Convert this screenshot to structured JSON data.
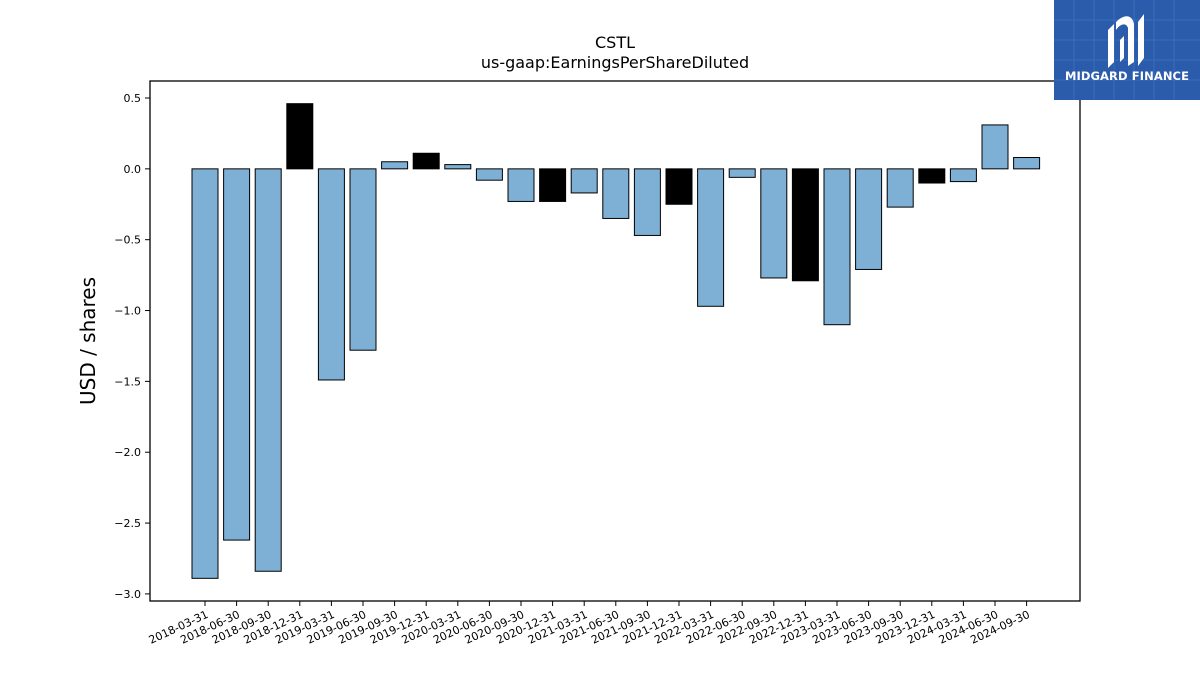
{
  "chart_data": {
    "type": "bar",
    "title": "CSTL",
    "subtitle": "us-gaap:EarningsPerShareDiluted",
    "xlabel": "",
    "ylabel": "USD / shares",
    "ylim": [
      -3.05,
      0.62
    ],
    "yticks": [
      0.5,
      0.0,
      -0.5,
      -1.0,
      -1.5,
      -2.0,
      -2.5,
      -3.0
    ],
    "ytick_labels": [
      "0.5",
      "0.0",
      "−0.5",
      "−1.0",
      "−1.5",
      "−2.0",
      "−2.5",
      "−3.0"
    ],
    "grid": false,
    "categories": [
      "2018-03-31",
      "2018-06-30",
      "2018-09-30",
      "2018-12-31",
      "2019-03-31",
      "2019-06-30",
      "2019-09-30",
      "2019-12-31",
      "2020-03-31",
      "2020-06-30",
      "2020-09-30",
      "2020-12-31",
      "2021-03-31",
      "2021-06-30",
      "2021-09-30",
      "2021-12-31",
      "2022-03-31",
      "2022-06-30",
      "2022-09-30",
      "2022-12-31",
      "2023-03-31",
      "2023-06-30",
      "2023-09-30",
      "2023-12-31",
      "2024-03-31",
      "2024-06-30",
      "2024-09-30"
    ],
    "values": [
      -2.89,
      -2.62,
      -2.84,
      0.46,
      -1.49,
      -1.28,
      0.05,
      0.11,
      0.03,
      -0.08,
      -0.23,
      -0.23,
      -0.17,
      -0.35,
      -0.47,
      -0.25,
      -0.97,
      -0.06,
      -0.77,
      -0.79,
      -1.1,
      -0.71,
      -0.27,
      -0.1,
      -0.09,
      0.31,
      0.08
    ],
    "highlight": [
      false,
      false,
      false,
      true,
      false,
      false,
      false,
      true,
      false,
      false,
      false,
      true,
      false,
      false,
      false,
      true,
      false,
      false,
      false,
      true,
      false,
      false,
      false,
      true,
      false,
      false,
      false
    ],
    "colors": {
      "bar": "#7eb0d5",
      "highlight_bar": "#000000",
      "edge": "#000000"
    }
  },
  "logo": {
    "text": "MIDGARD FINANCE",
    "background": "#2b5cab",
    "icon": "midgard-logo-mark"
  }
}
